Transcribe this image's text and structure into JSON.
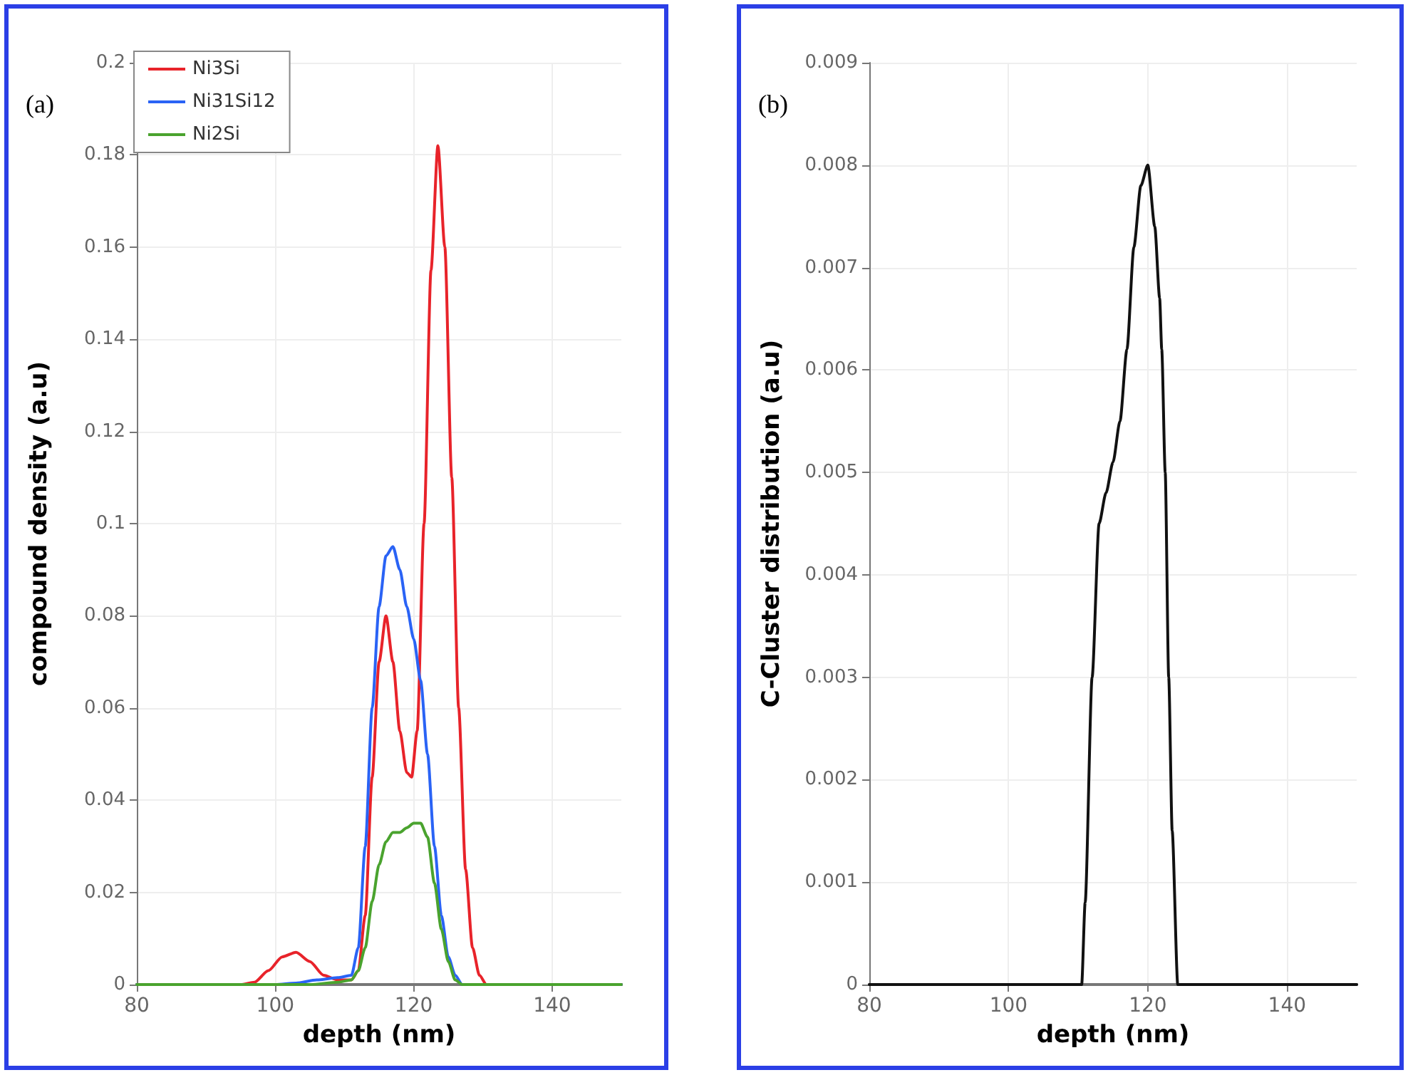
{
  "chart_data": [
    {
      "type": "line",
      "xlabel": "depth (nm)",
      "ylabel": "compound density (a.u)",
      "annotations": [
        "(a)"
      ],
      "xlim": [
        80,
        150
      ],
      "xticks": [
        80,
        100,
        120,
        140
      ],
      "ylim": [
        0,
        0.2
      ],
      "yticks": [
        0,
        0.02,
        0.04,
        0.06,
        0.08,
        0.1,
        0.12,
        0.14,
        0.16,
        0.18,
        0.2
      ],
      "grid": true,
      "legend": "top left",
      "marker": "none",
      "line_style": "solid",
      "series": [
        {
          "name": "Ni3Si",
          "color": "#e8232a",
          "x": [
            80,
            95,
            97,
            99,
            101,
            103,
            105,
            107,
            109,
            111,
            112,
            113,
            114,
            115,
            116,
            117,
            118,
            119,
            119.7,
            120.5,
            121.5,
            122.5,
            123.5,
            124.5,
            125.5,
            126.5,
            127.5,
            128.5,
            129.5,
            130.5,
            150
          ],
          "values": [
            0,
            0,
            0.0005,
            0.003,
            0.006,
            0.007,
            0.005,
            0.002,
            0.001,
            0.001,
            0.003,
            0.015,
            0.045,
            0.07,
            0.08,
            0.07,
            0.055,
            0.046,
            0.045,
            0.055,
            0.1,
            0.155,
            0.182,
            0.16,
            0.11,
            0.06,
            0.025,
            0.008,
            0.002,
            0,
            0
          ]
        },
        {
          "name": "Ni31Si12",
          "color": "#2a63f5",
          "x": [
            80,
            100,
            103,
            106,
            109,
            111,
            112,
            113,
            114,
            115,
            116,
            117,
            118,
            119,
            120,
            121,
            122,
            123,
            124,
            125,
            126,
            127,
            150
          ],
          "values": [
            0,
            0,
            0.0003,
            0.001,
            0.0015,
            0.002,
            0.008,
            0.03,
            0.06,
            0.082,
            0.093,
            0.095,
            0.09,
            0.082,
            0.075,
            0.066,
            0.05,
            0.03,
            0.015,
            0.006,
            0.002,
            0,
            0
          ]
        },
        {
          "name": "Ni2Si",
          "color": "#4aa32e",
          "x": [
            80,
            105,
            109,
            111,
            112,
            113,
            114,
            115,
            116,
            117,
            118,
            119,
            120,
            121,
            122,
            123,
            124,
            125,
            126,
            127,
            150
          ],
          "values": [
            0,
            0,
            0.0005,
            0.001,
            0.003,
            0.008,
            0.018,
            0.026,
            0.031,
            0.033,
            0.033,
            0.034,
            0.035,
            0.035,
            0.032,
            0.022,
            0.012,
            0.005,
            0.001,
            0,
            0
          ]
        }
      ]
    },
    {
      "type": "line",
      "xlabel": "depth (nm)",
      "ylabel": "C-Cluster distribution (a.u)",
      "annotations": [
        "(b)"
      ],
      "xlim": [
        80,
        150
      ],
      "xticks": [
        80,
        100,
        120,
        140
      ],
      "ylim": [
        0,
        0.009
      ],
      "yticks": [
        0,
        0.001,
        0.002,
        0.003,
        0.004,
        0.005,
        0.006,
        0.007,
        0.008,
        0.009
      ],
      "grid": true,
      "legend": false,
      "marker": "none",
      "line_style": "solid",
      "series": [
        {
          "color": "#111111",
          "x": [
            80,
            110.5,
            111,
            112,
            113,
            114,
            115,
            116,
            117,
            118,
            119,
            120,
            121,
            121.7,
            122,
            122.5,
            123,
            123.5,
            124.3,
            150
          ],
          "values": [
            0,
            0,
            0.0008,
            0.003,
            0.0045,
            0.0048,
            0.0051,
            0.0055,
            0.0062,
            0.0072,
            0.0078,
            0.008,
            0.0074,
            0.0067,
            0.0062,
            0.005,
            0.003,
            0.0015,
            0,
            0
          ]
        }
      ]
    }
  ]
}
